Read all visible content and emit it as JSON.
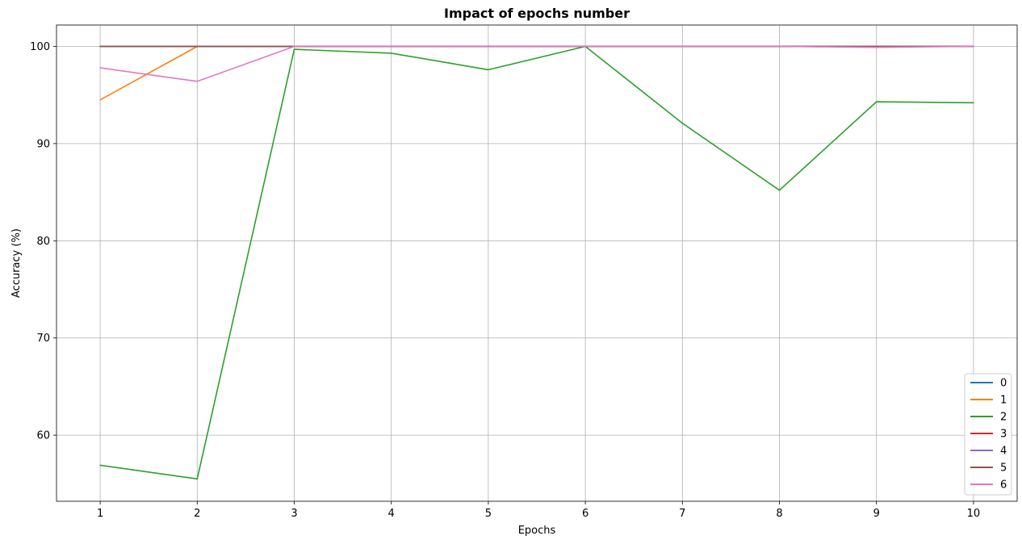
{
  "chart_data": {
    "type": "line",
    "title": "Impact of epochs number",
    "xlabel": "Epochs",
    "ylabel": "Accuracy (%)",
    "x": [
      1,
      2,
      3,
      4,
      5,
      6,
      7,
      8,
      9,
      10
    ],
    "xticks": [
      "1",
      "2",
      "3",
      "4",
      "5",
      "6",
      "7",
      "8",
      "9",
      "10"
    ],
    "yticks": [
      "60",
      "70",
      "80",
      "90",
      "100"
    ],
    "xlim": [
      0.55,
      10.45
    ],
    "ylim": [
      53.2,
      102.2
    ],
    "grid": true,
    "legend_position": "lower-right",
    "series": [
      {
        "name": "0",
        "color": "#1f77b4",
        "values": [
          100,
          100,
          100,
          100,
          100,
          100,
          100,
          100,
          100,
          100
        ]
      },
      {
        "name": "1",
        "color": "#ff7f0e",
        "values": [
          94.5,
          100,
          100,
          100,
          100,
          100,
          100,
          100,
          100,
          100
        ]
      },
      {
        "name": "2",
        "color": "#2ca02c",
        "values": [
          56.9,
          55.5,
          99.7,
          99.3,
          97.6,
          100,
          92.1,
          85.2,
          94.3,
          94.2
        ]
      },
      {
        "name": "3",
        "color": "#d62728",
        "values": [
          100,
          100,
          100,
          100,
          100,
          100,
          100,
          100,
          100,
          100
        ]
      },
      {
        "name": "4",
        "color": "#9467bd",
        "values": [
          100,
          100,
          100,
          100,
          100,
          100,
          100,
          100,
          100,
          100
        ]
      },
      {
        "name": "5",
        "color": "#8c564b",
        "values": [
          100,
          100,
          100,
          100,
          100,
          100,
          100,
          100,
          100,
          100
        ]
      },
      {
        "name": "6",
        "color": "#e377c2",
        "values": [
          97.8,
          96.4,
          100,
          100,
          100,
          100,
          100,
          100,
          99.9,
          100
        ]
      }
    ]
  }
}
